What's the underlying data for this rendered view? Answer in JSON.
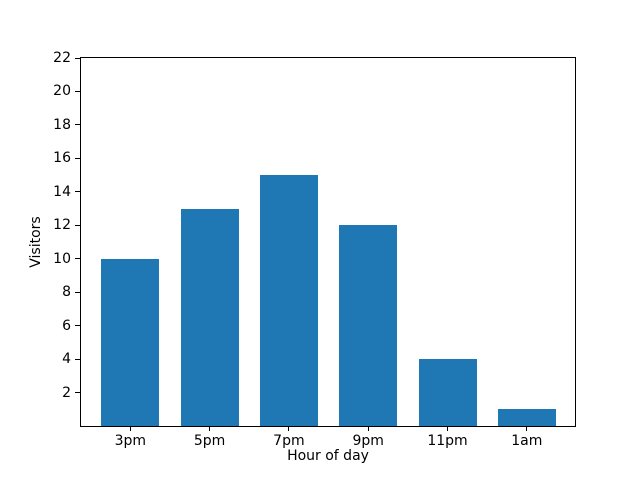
{
  "chart_data": {
    "type": "bar",
    "title": "",
    "xlabel": "Hour of day",
    "ylabel": "Visitors",
    "categories": [
      "3pm",
      "5pm",
      "7pm",
      "9pm",
      "11pm",
      "1am"
    ],
    "values": [
      10,
      13,
      15,
      12,
      4,
      1
    ],
    "ylim": [
      0,
      22
    ],
    "yticks": [
      2,
      4,
      6,
      8,
      10,
      12,
      14,
      16,
      18,
      20,
      22
    ],
    "bar_color": "#1f77b4",
    "grid": false,
    "legend": false,
    "background": "#ffffff",
    "axes_edge_color": "#000000"
  }
}
